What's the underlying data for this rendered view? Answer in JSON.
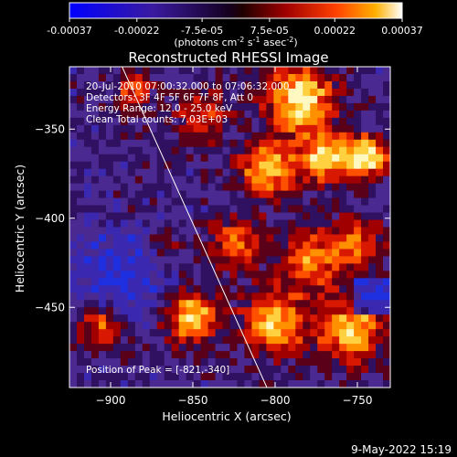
{
  "colorbar": {
    "tick_labels": [
      "-0.00037",
      "-0.00022",
      "-7.5e-05",
      "7.5e-05",
      "0.00022",
      "0.00037"
    ],
    "tick_values": [
      -0.00037,
      -0.00022,
      -7.5e-05,
      7.5e-05,
      0.00022,
      0.00037
    ],
    "range": [
      -0.00037,
      0.00037
    ],
    "units_parts": [
      "(photons cm",
      "-2",
      " s",
      "-1",
      " asec",
      "-2",
      ")"
    ]
  },
  "chart_data": {
    "type": "heatmap",
    "title": "Reconstructed RHESSI Image",
    "xlabel": "Heliocentric X (arcsec)",
    "ylabel": "Heliocentric Y (arcsec)",
    "xlim": [
      -925,
      -730
    ],
    "ylim": [
      -495,
      -315
    ],
    "x_ticks": [
      -900,
      -850,
      -800,
      -750
    ],
    "x_tick_labels": [
      "−900",
      "−850",
      "−800",
      "−750"
    ],
    "y_ticks": [
      -350,
      -400,
      -450
    ],
    "y_tick_labels": [
      "−350",
      "−400",
      "−450"
    ],
    "annotations": [
      "20-Jul-2010 07:00:32.000 to 07:06:32.000",
      "Detectors: 3F 4F 5F 6F 7F 8F, Att 0",
      "Energy Range: 12.0 - 25.0 keV",
      "Clean    Total counts: 7.03E+03"
    ],
    "peak_label": "Position of Peak = [-821,-340]",
    "peak": [
      -821,
      -340
    ],
    "limb_line": [
      [
        -893,
        -315
      ],
      [
        -805,
        -495
      ]
    ]
  },
  "footer": {
    "date": "9-May-2022 15:19"
  },
  "colors": {
    "background": "#000000",
    "text": "#ffffff"
  }
}
